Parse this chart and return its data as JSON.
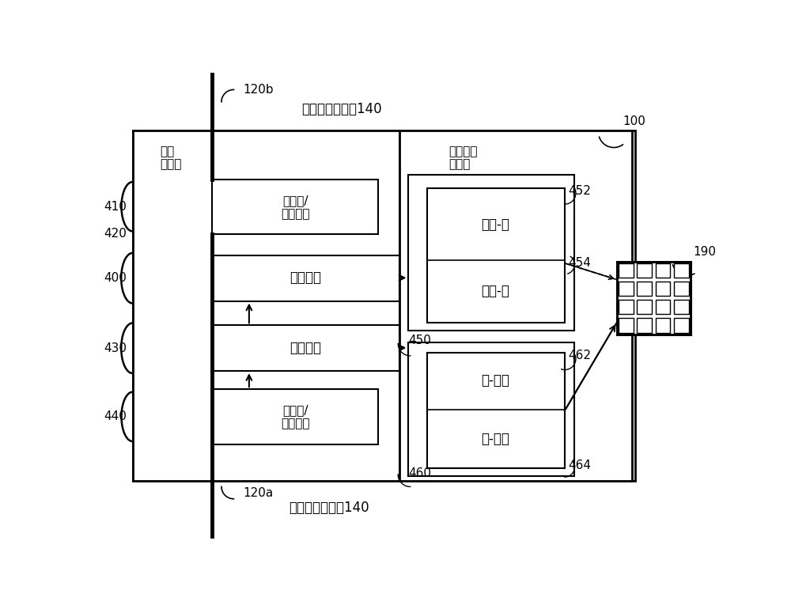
{
  "bg_color": "#ffffff",
  "lc": "#000000",
  "label_120b": "120b",
  "label_120a": "120a",
  "label_100": "100",
  "label_far": "远离光电收发器140",
  "label_toward": "朝向光电收发器140",
  "label_bus_line1": "总线",
  "label_bus_line2": "连接器",
  "label_optical_freq_line1": "光学频率",
  "label_optical_freq_line2": "可配置",
  "label_410": "410",
  "label_420": "420",
  "label_400": "400",
  "label_430": "430",
  "label_440": "440",
  "label_450": "450",
  "label_452": "452",
  "label_454": "454",
  "label_460": "460",
  "label_462": "462",
  "label_464": "464",
  "label_190": "190",
  "label_mux_top_line1": "复用器/",
  "label_mux_top_line2": "解复用器",
  "label_optical_add": "光学添加",
  "label_optical_drop": "光学下放",
  "label_mux_bot_line1": "复用器/",
  "label_mux_bot_line2": "解复用器",
  "label_analog_light": "模拟-光",
  "label_digital_light": "数字-光",
  "label_light_analog": "光-模拟",
  "label_light_digital": "光-数字"
}
